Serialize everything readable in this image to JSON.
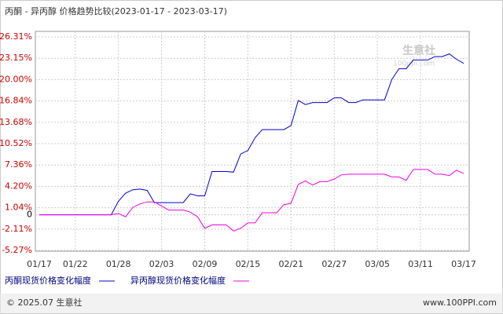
{
  "chart_data": {
    "type": "line",
    "title": "丙酮 - 异丙醇 价格趋势比较(2023-01-17 - 2023-03-17)",
    "categories": [
      "01/17",
      null,
      null,
      null,
      null,
      "01/22",
      null,
      null,
      null,
      null,
      null,
      "01/28",
      null,
      null,
      null,
      null,
      null,
      "02/03",
      null,
      null,
      null,
      null,
      null,
      "02/09",
      null,
      null,
      null,
      null,
      null,
      "02/15",
      null,
      null,
      null,
      null,
      null,
      "02/21",
      null,
      null,
      null,
      null,
      null,
      "02/27",
      null,
      null,
      null,
      null,
      null,
      "03/05",
      null,
      null,
      null,
      null,
      null,
      "03/11",
      null,
      null,
      null,
      null,
      null,
      "03/17"
    ],
    "series": [
      {
        "name": "丙酮现货价格变化幅度",
        "color": "#0000cc",
        "values": [
          0,
          0,
          0,
          0,
          0,
          0,
          0,
          0,
          0,
          0,
          0,
          2.0,
          3.2,
          3.7,
          3.8,
          3.6,
          1.8,
          1.8,
          1.8,
          1.8,
          1.8,
          3.1,
          2.8,
          2.8,
          6.4,
          6.4,
          6.4,
          6.3,
          9.0,
          9.5,
          11.4,
          12.6,
          12.6,
          12.6,
          12.6,
          13.2,
          16.9,
          16.3,
          16.6,
          16.6,
          16.6,
          17.3,
          17.3,
          16.6,
          16.6,
          17.0,
          17.0,
          17.0,
          17.0,
          20.0,
          21.6,
          21.6,
          22.9,
          22.9,
          22.9,
          23.4,
          23.4,
          23.8,
          23.0,
          22.4
        ]
      },
      {
        "name": "异丙醇现货价格变化幅度",
        "color": "#ee00ee",
        "values": [
          0,
          0,
          0,
          0,
          0,
          0,
          0,
          0,
          0,
          0,
          0,
          0.2,
          -0.3,
          1.1,
          1.6,
          1.9,
          1.9,
          1.3,
          0.7,
          0.7,
          0.7,
          0.4,
          -0.3,
          -2.0,
          -1.5,
          -1.5,
          -1.5,
          -2.4,
          -2.0,
          -1.2,
          -1.2,
          0.3,
          0.3,
          0.3,
          1.5,
          1.7,
          4.5,
          5.0,
          4.4,
          4.9,
          4.9,
          5.3,
          5.9,
          6.0,
          6.0,
          6.0,
          6.0,
          6.0,
          6.0,
          5.6,
          5.6,
          5.1,
          6.7,
          6.7,
          6.7,
          6.0,
          6.0,
          5.8,
          6.6,
          6.1
        ]
      }
    ],
    "ylim": [
      -5.27,
      26.31
    ],
    "yticks": [
      {
        "value": 26.31,
        "label": "26.31%"
      },
      {
        "value": 23.15,
        "label": "23.15%"
      },
      {
        "value": 20.0,
        "label": "20.00%"
      },
      {
        "value": 16.84,
        "label": "16.84%"
      },
      {
        "value": 13.68,
        "label": "13.68%"
      },
      {
        "value": 10.52,
        "label": "10.52%"
      },
      {
        "value": 7.36,
        "label": "7.36%"
      },
      {
        "value": 4.2,
        "label": "4.20%"
      },
      {
        "value": 1.04,
        "label": "1.04%"
      },
      0,
      {
        "value": -2.11,
        "label": "-2.11%"
      },
      {
        "value": -5.27,
        "label": "-5.27%"
      }
    ],
    "grid": true,
    "tick_label_color": "#cc0000",
    "zero_label_color": "#000000"
  },
  "watermark": {
    "brand": "生意社",
    "site": "100ppi.com"
  },
  "footer": {
    "copyright": "© 2025.07 生意社",
    "site": "www.100PPI.com"
  }
}
